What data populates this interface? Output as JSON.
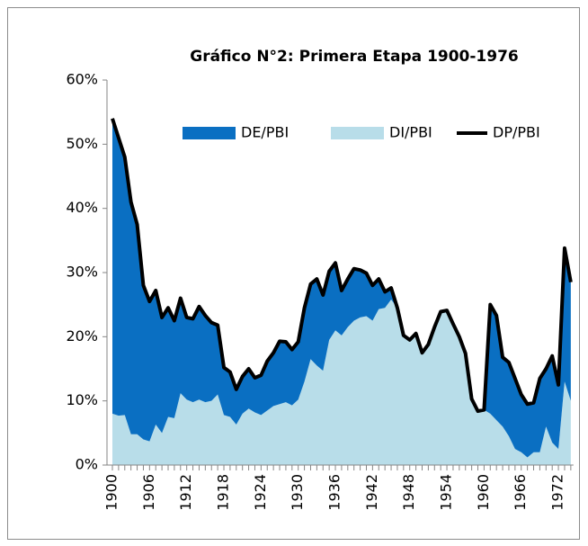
{
  "chart_data": {
    "type": "area",
    "stacked": true,
    "title": "Gráfico N°2: Primera Etapa 1900-1976",
    "categories": [
      "1900",
      null,
      null,
      null,
      null,
      null,
      "1906",
      null,
      null,
      null,
      null,
      null,
      "1912",
      null,
      null,
      null,
      null,
      null,
      "1918",
      null,
      null,
      null,
      null,
      null,
      "1924",
      null,
      null,
      null,
      null,
      null,
      "1930",
      null,
      null,
      null,
      null,
      null,
      "1936",
      null,
      null,
      null,
      null,
      null,
      "1942",
      null,
      null,
      null,
      null,
      null,
      "1948",
      null,
      null,
      null,
      null,
      null,
      "1954",
      null,
      null,
      null,
      null,
      null,
      "1960",
      null,
      null,
      null,
      null,
      null,
      "1966",
      null,
      null,
      null,
      null,
      null,
      "1972",
      null,
      null
    ],
    "ylim": [
      0,
      60
    ],
    "yticks": [
      {
        "value": 0,
        "label": "0%"
      },
      {
        "value": 10,
        "label": "10%"
      },
      {
        "value": 20,
        "label": "20%"
      },
      {
        "value": 30,
        "label": "30%"
      },
      {
        "value": 40,
        "label": "40%"
      },
      {
        "value": 50,
        "label": "50%"
      },
      {
        "value": 60,
        "label": "60%"
      }
    ],
    "series": [
      {
        "name": "DE/PBI",
        "type": "area",
        "color": "#0a6fc2",
        "values": [
          46,
          43.3,
          40.2,
          36.2,
          32.7,
          24,
          21.8,
          20.9,
          18,
          17,
          15.2,
          14.8,
          12.8,
          13,
          14.5,
          13.5,
          12.2,
          10.8,
          7.4,
          7,
          5.5,
          5.8,
          6.2,
          5.4,
          6.2,
          7.7,
          8.3,
          9.8,
          9.4,
          8.7,
          9,
          11.5,
          11.7,
          13.5,
          11.8,
          10.7,
          10.5,
          7,
          7.5,
          8.1,
          7.4,
          6.7,
          5.5,
          4.7,
          2.5,
          1.8,
          0,
          0,
          0,
          0,
          0,
          0,
          0,
          0,
          0,
          0,
          0,
          0,
          0,
          0,
          0,
          17,
          16.3,
          10.8,
          11.5,
          11,
          9,
          8.3,
          7.7,
          11.5,
          9,
          13.5,
          10,
          20.8,
          18.5
        ]
      },
      {
        "name": "DI/PBI",
        "type": "area",
        "color": "#b8dde9",
        "values": [
          8,
          7.7,
          7.8,
          4.8,
          4.8,
          4,
          3.7,
          6.3,
          5,
          7.5,
          7.3,
          11.2,
          10.2,
          9.8,
          10.2,
          9.8,
          10,
          11,
          7.8,
          7.5,
          6.3,
          8,
          8.8,
          8.2,
          7.8,
          8.5,
          9.2,
          9.5,
          9.8,
          9.3,
          10.2,
          13,
          16.5,
          15.5,
          14.7,
          19.5,
          21,
          20.2,
          21.5,
          22.5,
          23,
          23.2,
          22.5,
          24.3,
          24.5,
          25.8,
          24.5,
          20.2,
          19.5,
          20.5,
          17.5,
          18.8,
          21.5,
          23.9,
          24.1,
          22,
          20,
          17.4,
          10.3,
          8.4,
          8.6,
          8,
          7,
          6,
          4.5,
          2.5,
          2,
          1.2,
          2,
          2,
          6,
          3.5,
          2.5,
          13,
          10
        ]
      },
      {
        "name": "DP/PBI",
        "type": "line",
        "color": "#000000",
        "values": [
          54,
          51,
          48,
          41,
          37.5,
          28,
          25.5,
          27.2,
          23,
          24.5,
          22.5,
          26,
          23,
          22.8,
          24.7,
          23.3,
          22.2,
          21.8,
          15.2,
          14.5,
          11.8,
          13.8,
          15,
          13.6,
          14,
          16.2,
          17.5,
          19.3,
          19.2,
          18,
          19.2,
          24.5,
          28.2,
          29,
          26.5,
          30.2,
          31.5,
          27.2,
          29,
          30.6,
          30.4,
          29.9,
          28,
          29,
          27,
          27.6,
          24.5,
          20.2,
          19.5,
          20.5,
          17.5,
          18.8,
          21.5,
          23.9,
          24.1,
          22,
          20,
          17.4,
          10.3,
          8.4,
          8.6,
          25,
          23.3,
          16.8,
          16,
          13.5,
          11,
          9.5,
          9.7,
          13.5,
          15,
          17,
          12.5,
          33.8,
          28.5
        ]
      }
    ]
  }
}
